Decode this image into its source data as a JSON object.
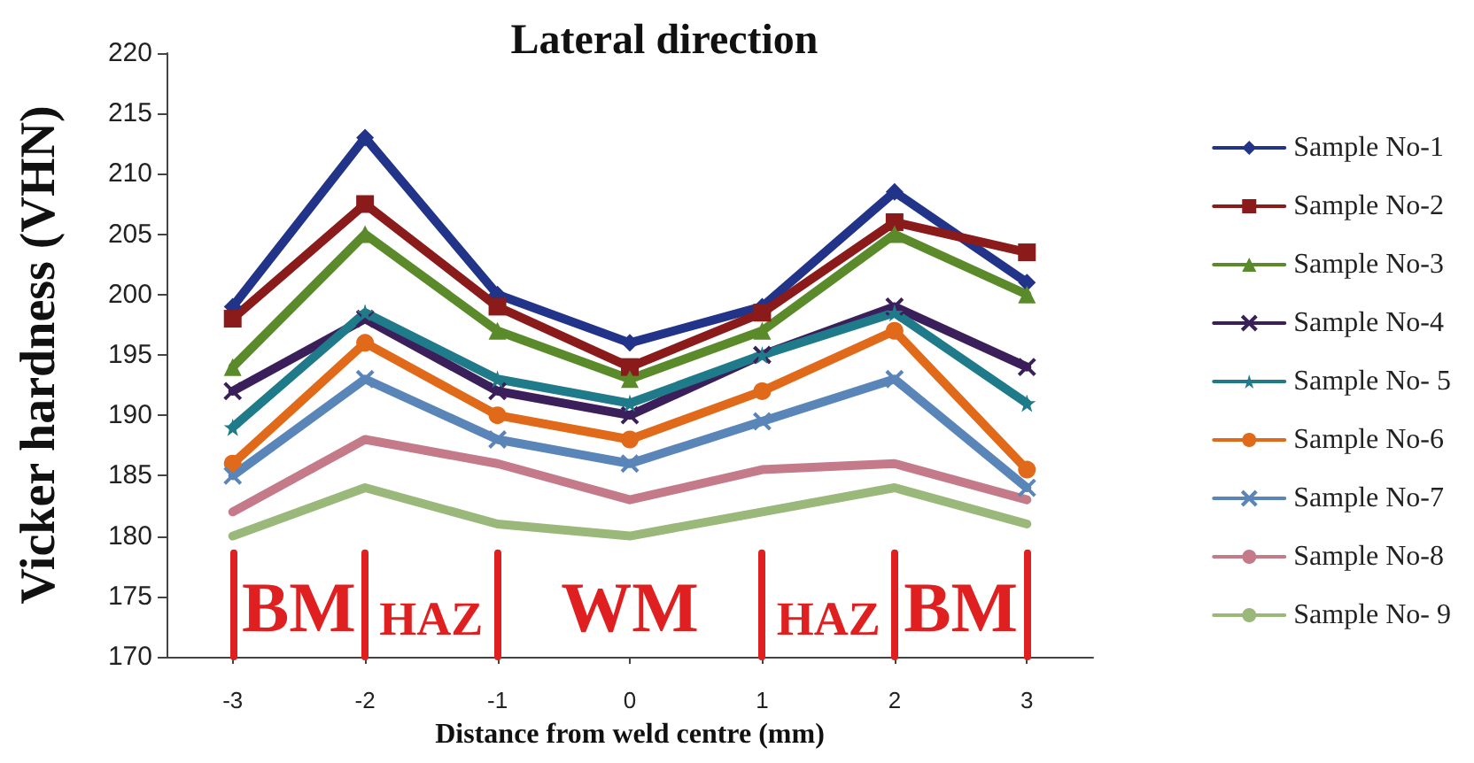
{
  "chart_data": {
    "type": "line",
    "title": "Lateral direction",
    "xlabel": "Distance from weld centre (mm)",
    "ylabel": "Vicker hardness (VHN)",
    "x": [
      -3,
      -2,
      -1,
      0,
      1,
      2,
      3
    ],
    "xlim": [
      -3.5,
      3.5
    ],
    "xticks": [
      -3,
      -2,
      -1,
      0,
      1,
      2,
      3
    ],
    "ylim": [
      170,
      220
    ],
    "yticks": [
      170,
      175,
      180,
      185,
      190,
      195,
      200,
      205,
      210,
      215,
      220
    ],
    "grid": false,
    "legend": "right",
    "series": [
      {
        "name": "Sample No-1",
        "color": "#22338a",
        "marker": "diamond",
        "values": [
          199,
          213,
          200,
          196,
          199,
          208.5,
          201
        ]
      },
      {
        "name": "Sample No-2",
        "color": "#8b1a1a",
        "marker": "square",
        "values": [
          198,
          207.5,
          199,
          194,
          198.5,
          206,
          203.5
        ]
      },
      {
        "name": "Sample No-3",
        "color": "#5a8a2a",
        "marker": "triangle",
        "values": [
          194,
          205,
          197,
          193,
          197,
          205,
          200
        ]
      },
      {
        "name": "Sample No-4",
        "color": "#3b1f5a",
        "marker": "cross",
        "values": [
          192,
          198,
          192,
          190,
          195,
          199,
          194
        ]
      },
      {
        "name": "Sample No- 5",
        "color": "#1f7a8a",
        "marker": "star",
        "values": [
          189,
          198.5,
          193,
          191,
          195,
          198.5,
          191
        ]
      },
      {
        "name": "Sample No-6",
        "color": "#e06a1a",
        "marker": "circle",
        "values": [
          186,
          196,
          190,
          188,
          192,
          197,
          185.5
        ]
      },
      {
        "name": "Sample No-7",
        "color": "#5a85b8",
        "marker": "cross",
        "values": [
          185,
          193,
          188,
          186,
          189.5,
          193,
          184
        ]
      },
      {
        "name": "Sample No-8",
        "color": "#c47a88",
        "marker": "none",
        "values": [
          182,
          188,
          186,
          183,
          185.5,
          186,
          183
        ]
      },
      {
        "name": "Sample No- 9",
        "color": "#9ab87a",
        "marker": "none",
        "values": [
          180,
          184,
          181,
          180,
          182,
          184,
          181
        ]
      }
    ],
    "ref_lines": [
      {
        "axis": "x",
        "value": -3,
        "color": "#e02020"
      },
      {
        "axis": "x",
        "value": -2,
        "color": "#e02020"
      },
      {
        "axis": "x",
        "value": -1,
        "color": "#e02020"
      },
      {
        "axis": "x",
        "value": 1,
        "color": "#e02020"
      },
      {
        "axis": "x",
        "value": 2,
        "color": "#e02020"
      },
      {
        "axis": "x",
        "value": 3,
        "color": "#e02020"
      }
    ],
    "annotations": [
      "BM",
      "HAZ",
      "WM",
      "HAZ",
      "BM"
    ]
  }
}
